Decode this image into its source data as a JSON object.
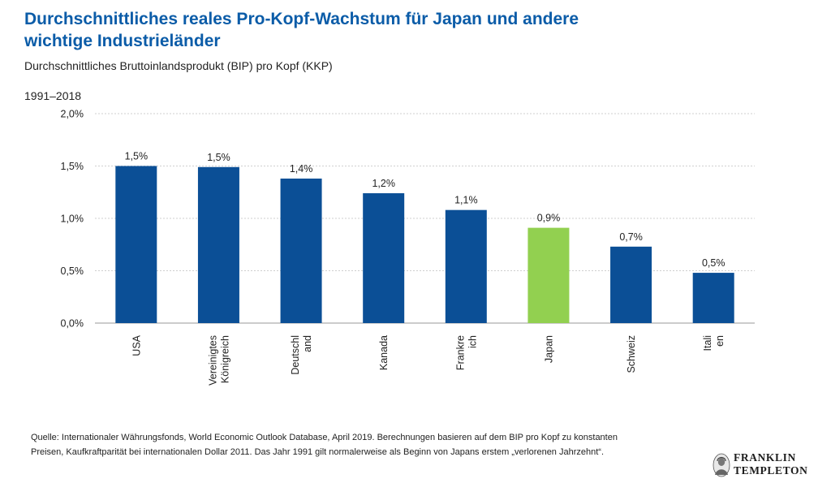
{
  "header": {
    "title": "Durchschnittliches reales Pro-Kopf-Wachstum für Japan und andere wichtige Industrieländer",
    "subtitle": "Durchschnittliches Bruttoinlandsprodukt (BIP) pro Kopf (KKP)",
    "period": "1991–2018"
  },
  "chart_data": {
    "type": "bar",
    "categories": [
      "USA",
      "Vereinigtes Königreich",
      "Deutschland",
      "Kanada",
      "Frankreich",
      "Japan",
      "Schweiz",
      "Italien"
    ],
    "category_lines": [
      [
        "USA"
      ],
      [
        "Vereinigtes",
        "Königreich"
      ],
      [
        "Deutschl",
        "and"
      ],
      [
        "Kanada"
      ],
      [
        "Frankre",
        "ich"
      ],
      [
        "Japan"
      ],
      [
        "Schweiz"
      ],
      [
        "Itali",
        "en"
      ]
    ],
    "values": [
      1.5,
      1.49,
      1.38,
      1.24,
      1.08,
      0.91,
      0.73,
      0.48
    ],
    "labels": [
      "1,5%",
      "1,5%",
      "1,4%",
      "1,2%",
      "1,1%",
      "0,9%",
      "0,7%",
      "0,5%"
    ],
    "highlight_index": 5,
    "ylim": [
      0,
      2.0
    ],
    "yticks": [
      0,
      0.5,
      1.0,
      1.5,
      2.0
    ],
    "ytick_labels": [
      "0,0%",
      "0,5%",
      "1,0%",
      "1,5%",
      "2,0%"
    ],
    "grid": true,
    "colors": {
      "bar": "#0b4f96",
      "highlight": "#92d050",
      "grid": "#cfcfcf"
    }
  },
  "footer": {
    "source_line1": "Quelle: Internationaler Währungsfonds, World Economic Outlook Database, April 2019. Berechnungen basieren auf dem BIP pro Kopf zu konstanten",
    "source_line2": "Preisen, Kaufkraftparität bei internationalen Dollar 2011. Das Jahr 1991 gilt normalerweise als Beginn von Japans erstem „verlorenen Jahrzehnt“."
  },
  "logo": {
    "line1": "FRANKLIN",
    "line2": "TEMPLETON",
    "icon": "franklin-portrait-icon"
  }
}
